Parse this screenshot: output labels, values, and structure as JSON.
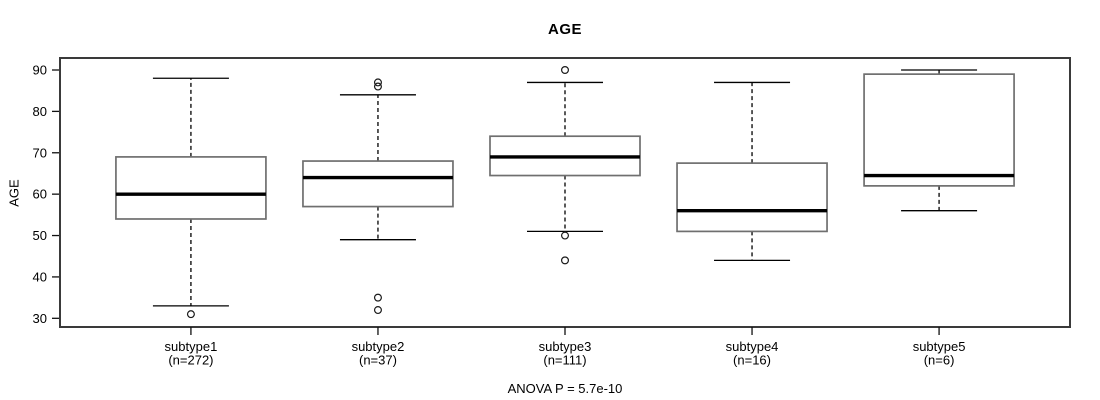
{
  "chart_data": {
    "type": "boxplot",
    "title": "AGE",
    "ylabel": "AGE",
    "xlabel": "",
    "annotation": "ANOVA P = 5.7e-10",
    "y_ticks": [
      30,
      40,
      50,
      60,
      70,
      80,
      90
    ],
    "ylim": [
      27.9,
      92.9
    ],
    "grid": false,
    "legend_position": "none",
    "groups": [
      {
        "label": "subtype1",
        "n_label": "(n=272)",
        "whisker_low": 33,
        "q1": 54,
        "median": 60,
        "q3": 69,
        "whisker_high": 88,
        "outliers": [
          31
        ]
      },
      {
        "label": "subtype2",
        "n_label": "(n=37)",
        "whisker_low": 49,
        "q1": 57,
        "median": 64,
        "q3": 68,
        "whisker_high": 84,
        "outliers": [
          32,
          35,
          86,
          87
        ]
      },
      {
        "label": "subtype3",
        "n_label": "(n=111)",
        "whisker_low": 51,
        "q1": 64.5,
        "median": 69,
        "q3": 74,
        "whisker_high": 87,
        "outliers": [
          44,
          50,
          90
        ]
      },
      {
        "label": "subtype4",
        "n_label": "(n=16)",
        "whisker_low": 44,
        "q1": 51,
        "median": 56,
        "q3": 67.5,
        "whisker_high": 87,
        "outliers": []
      },
      {
        "label": "subtype5",
        "n_label": "(n=6)",
        "whisker_low": 56,
        "q1": 62,
        "median": 64.5,
        "q3": 89,
        "whisker_high": 90,
        "outliers": []
      }
    ],
    "colors": {
      "background": "#ffffff",
      "frame": "#3a3a3a",
      "box_border": "#6f6f6f",
      "box_fill": "#ffffff",
      "line": "#000000",
      "median": "#000000"
    }
  }
}
